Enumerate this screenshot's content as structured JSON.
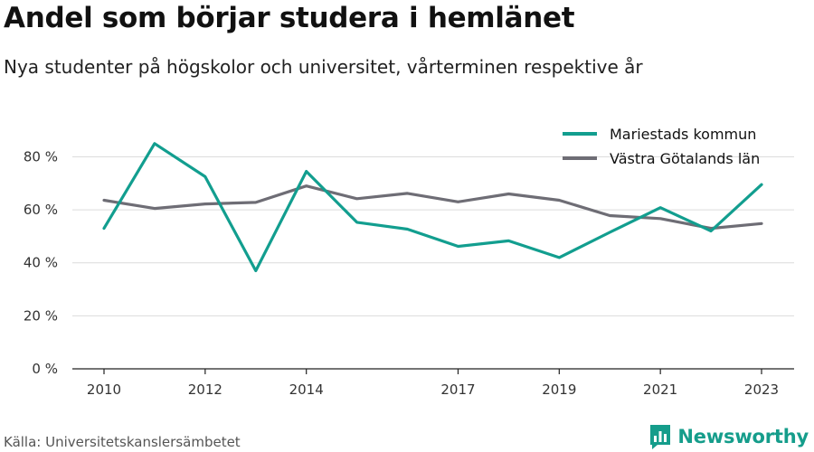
{
  "title": "Andel som börjar studera i hemlänet",
  "subtitle": "Nya studenter på högskolor och universitet, vårterminen respektive år",
  "source": "Källa: Universitetskanslersämbetet",
  "brand": "Newsworthy",
  "colors": {
    "series1": "#129e8f",
    "series2": "#6e6d75",
    "brand": "#159d8b"
  },
  "chart_data": {
    "type": "line",
    "title": "Andel som börjar studera i hemlänet",
    "subtitle": "Nya studenter på högskolor och universitet, vårterminen respektive år",
    "x": [
      2010,
      2011,
      2012,
      2013,
      2014,
      2015,
      2016,
      2017,
      2018,
      2019,
      2020,
      2021,
      2022,
      2023
    ],
    "x_ticks": [
      2010,
      2012,
      2014,
      2017,
      2019,
      2021,
      2023
    ],
    "y_ticks": [
      0,
      20,
      40,
      60,
      80
    ],
    "y_tick_labels": [
      "0 %",
      "20 %",
      "40 %",
      "60 %",
      "80 %"
    ],
    "ylim": [
      0,
      88
    ],
    "grid": true,
    "legend_position": "top-right",
    "series": [
      {
        "name": "Mariestads kommun",
        "values": [
          53,
          85,
          72.5,
          37,
          74.5,
          55.3,
          52.7,
          46.2,
          48.3,
          42,
          51.5,
          60.8,
          52,
          69.5
        ]
      },
      {
        "name": "Västra Götalands län",
        "values": [
          63.6,
          60.5,
          62.2,
          62.8,
          69,
          64.2,
          66.2,
          63,
          66,
          63.6,
          57.8,
          56.7,
          53,
          54.8
        ]
      }
    ]
  }
}
